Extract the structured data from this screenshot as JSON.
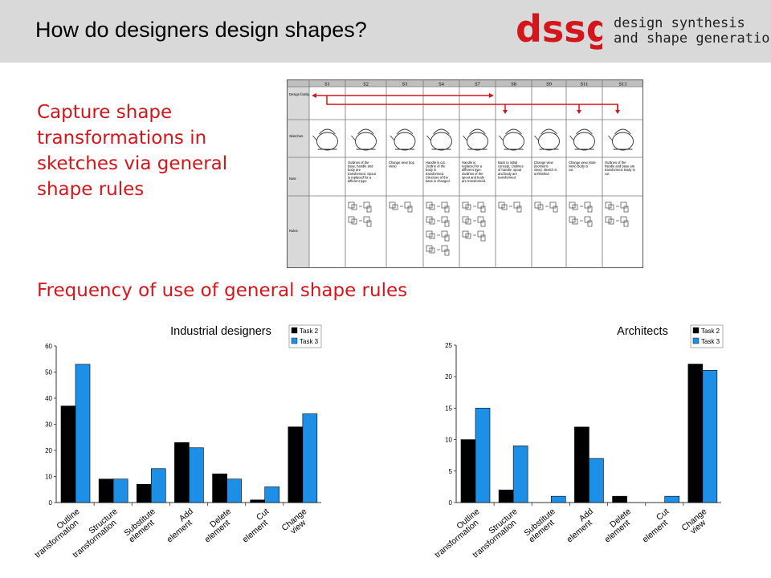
{
  "header": {
    "title": "How do designers design shapes?",
    "logo_text": "dssg",
    "tagline_line1": "design synthesis",
    "tagline_line2": "and shape generation"
  },
  "capture_text": "Capture shape transformations in sketches via general shape rules",
  "frequency_title": "Frequency of use of general shape rules",
  "sketch_table": {
    "columns": [
      "S1",
      "S2",
      "S3",
      "S4",
      "S7",
      "S8",
      "S9",
      "S11",
      "S13"
    ],
    "row_labels": [
      "Design family",
      "Sketches",
      "Note",
      "Rules"
    ],
    "notes": [
      "",
      "Outlines of the base, handle and body are transformed. Spout is replaced for a different type",
      "Change view (top view)",
      "Handle is cut. Outline of the body is transformed. Structure of the base is changed",
      "Handle is replaced for a different type. Outlines of the spout and body are transformed.",
      "Back to initial concept. Outlines of handle, spout and body are transformed",
      "Change view (isometric view). Sketch is unfinished",
      "Change view (side view) Body is cut.",
      "Outlines of the handle and base are transformed. Body is cut."
    ]
  },
  "colors": {
    "header_bg": "#d9d9d9",
    "accent_red": "#d3161b",
    "task2": "#000000",
    "task3": "#1e8fe6"
  },
  "chart_data": [
    {
      "type": "bar",
      "title": "Industrial designers",
      "categories": [
        "Outline transformation",
        "Structure transformation",
        "Substitute element",
        "Add element",
        "Delete element",
        "Cut element",
        "Change view"
      ],
      "series": [
        {
          "name": "Task 2",
          "values": [
            37,
            9,
            7,
            23,
            11,
            1,
            29
          ]
        },
        {
          "name": "Task 3",
          "values": [
            53,
            9,
            13,
            21,
            9,
            6,
            34
          ]
        }
      ],
      "ylim": [
        0,
        60
      ],
      "yticks": [
        0,
        10,
        20,
        30,
        40,
        50,
        60
      ],
      "legend_position": "top-right",
      "grid": false
    },
    {
      "type": "bar",
      "title": "Architects",
      "categories": [
        "Outline transformation",
        "Structure transformation",
        "Substitute element",
        "Add element",
        "Delete element",
        "Cut element",
        "Change view"
      ],
      "series": [
        {
          "name": "Task 2",
          "values": [
            10,
            2,
            0,
            12,
            1,
            0,
            22
          ]
        },
        {
          "name": "Task 3",
          "values": [
            15,
            9,
            1,
            7,
            0,
            1,
            21
          ]
        }
      ],
      "ylim": [
        0,
        25
      ],
      "yticks": [
        0,
        5,
        10,
        15,
        20,
        25
      ],
      "legend_position": "top-right",
      "grid": false
    }
  ]
}
